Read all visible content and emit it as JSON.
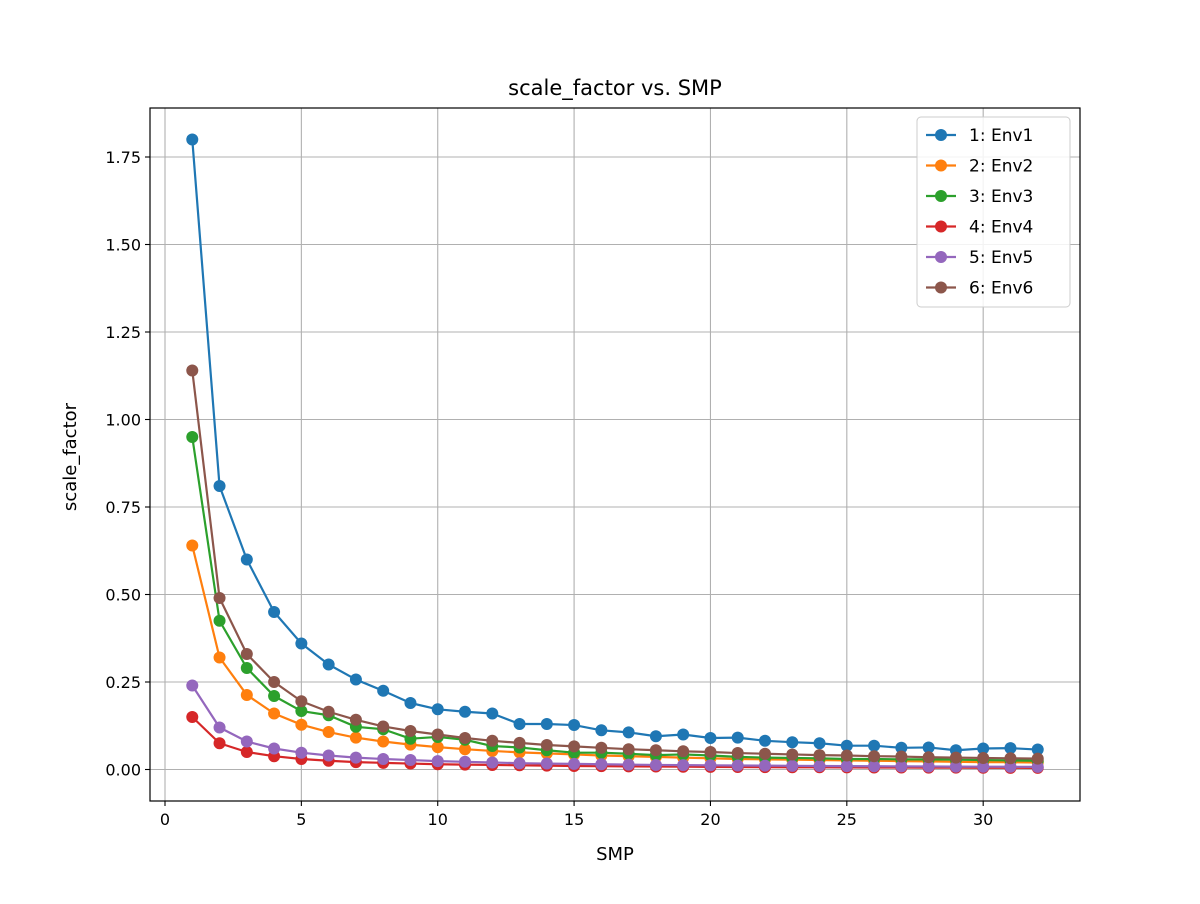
{
  "chart_data": {
    "type": "line",
    "title": "scale_factor vs. SMP",
    "xlabel": "SMP",
    "ylabel": "scale_factor",
    "xlim": [
      -0.55,
      33.55
    ],
    "ylim": [
      -0.09,
      1.89
    ],
    "xticks": [
      0,
      5,
      10,
      15,
      20,
      25,
      30
    ],
    "yticks": [
      0.0,
      0.25,
      0.5,
      0.75,
      1.0,
      1.25,
      1.5,
      1.75
    ],
    "xtick_labels": [
      "0",
      "5",
      "10",
      "15",
      "20",
      "25",
      "30"
    ],
    "ytick_labels": [
      "0.00",
      "0.25",
      "0.50",
      "0.75",
      "1.00",
      "1.25",
      "1.50",
      "1.75"
    ],
    "grid": true,
    "legend_position": "top-right",
    "x": [
      1,
      2,
      3,
      4,
      5,
      6,
      7,
      8,
      9,
      10,
      11,
      12,
      13,
      14,
      15,
      16,
      17,
      18,
      19,
      20,
      21,
      22,
      23,
      24,
      25,
      26,
      27,
      28,
      29,
      30,
      31,
      32
    ],
    "series": [
      {
        "name": "1: Env1",
        "color": "#1f77b4",
        "values": [
          1.8,
          0.81,
          0.6,
          0.45,
          0.36,
          0.3,
          0.257,
          0.225,
          0.19,
          0.172,
          0.165,
          0.16,
          0.13,
          0.13,
          0.127,
          0.112,
          0.106,
          0.095,
          0.1,
          0.09,
          0.091,
          0.082,
          0.078,
          0.075,
          0.068,
          0.068,
          0.062,
          0.063,
          0.055,
          0.06,
          0.061,
          0.057
        ]
      },
      {
        "name": "2: Env2",
        "color": "#ff7f0e",
        "values": [
          0.64,
          0.32,
          0.213,
          0.16,
          0.128,
          0.107,
          0.091,
          0.08,
          0.071,
          0.064,
          0.058,
          0.053,
          0.049,
          0.046,
          0.043,
          0.04,
          0.038,
          0.036,
          0.034,
          0.032,
          0.03,
          0.029,
          0.028,
          0.027,
          0.026,
          0.025,
          0.024,
          0.023,
          0.022,
          0.021,
          0.021,
          0.02
        ]
      },
      {
        "name": "3: Env3",
        "color": "#2ca02c",
        "values": [
          0.95,
          0.425,
          0.29,
          0.21,
          0.167,
          0.155,
          0.122,
          0.115,
          0.088,
          0.093,
          0.085,
          0.067,
          0.063,
          0.055,
          0.048,
          0.048,
          0.045,
          0.041,
          0.043,
          0.04,
          0.036,
          0.034,
          0.033,
          0.032,
          0.03,
          0.03,
          0.029,
          0.029,
          0.028,
          0.027,
          0.026,
          0.025
        ]
      },
      {
        "name": "4: Env4",
        "color": "#d62728",
        "values": [
          0.15,
          0.075,
          0.05,
          0.038,
          0.03,
          0.025,
          0.021,
          0.019,
          0.017,
          0.015,
          0.014,
          0.013,
          0.012,
          0.011,
          0.01,
          0.0095,
          0.009,
          0.0085,
          0.008,
          0.0075,
          0.0072,
          0.0068,
          0.0065,
          0.0063,
          0.006,
          0.0058,
          0.0056,
          0.0054,
          0.0052,
          0.005,
          0.0048,
          0.0047
        ]
      },
      {
        "name": "5: Env5",
        "color": "#9467bd",
        "values": [
          0.24,
          0.12,
          0.08,
          0.06,
          0.048,
          0.04,
          0.034,
          0.03,
          0.027,
          0.024,
          0.022,
          0.02,
          0.018,
          0.017,
          0.016,
          0.015,
          0.014,
          0.013,
          0.0125,
          0.012,
          0.0115,
          0.011,
          0.0105,
          0.01,
          0.0097,
          0.0093,
          0.009,
          0.0087,
          0.0083,
          0.008,
          0.0078,
          0.0075
        ]
      },
      {
        "name": "6: Env6",
        "color": "#8c564b",
        "values": [
          1.14,
          0.49,
          0.33,
          0.25,
          0.195,
          0.165,
          0.142,
          0.123,
          0.11,
          0.1,
          0.09,
          0.082,
          0.076,
          0.07,
          0.066,
          0.062,
          0.058,
          0.055,
          0.052,
          0.05,
          0.047,
          0.045,
          0.043,
          0.041,
          0.04,
          0.038,
          0.037,
          0.035,
          0.034,
          0.033,
          0.032,
          0.031
        ]
      }
    ]
  }
}
